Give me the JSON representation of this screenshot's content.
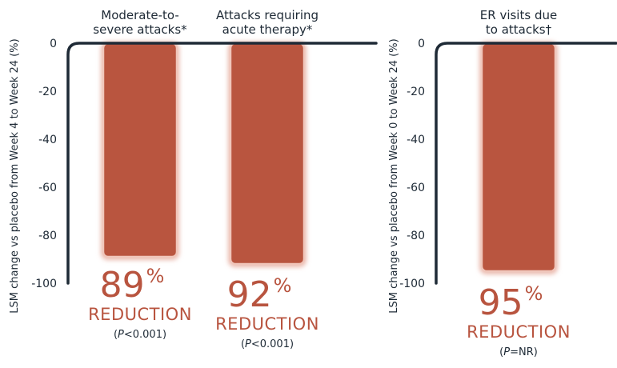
{
  "chart_data": [
    {
      "type": "bar",
      "ylabel": "LSM change vs placebo from Week 4 to Week 24 (%)",
      "ylim": [
        -100,
        0
      ],
      "yticks": [
        "0",
        "-20",
        "-40",
        "-60",
        "-80",
        "-100"
      ],
      "bars": [
        {
          "category_lines": [
            "Moderate-to-",
            "severe attacks*"
          ],
          "value": -89,
          "pct_number": "89",
          "pct_symbol": "%",
          "reduction_label": "REDUCTION",
          "p_label": "P",
          "p_text": "<0.001"
        },
        {
          "category_lines": [
            "Attacks requiring",
            "acute therapy*"
          ],
          "value": -92,
          "pct_number": "92",
          "pct_symbol": "%",
          "reduction_label": "REDUCTION",
          "p_label": "P",
          "p_text": "<0.001"
        }
      ]
    },
    {
      "type": "bar",
      "ylabel": "LSM change vs placebo from Week 0 to Week 24 (%)",
      "ylim": [
        -100,
        0
      ],
      "yticks": [
        "0",
        "-20",
        "-40",
        "-60",
        "-80",
        "-100"
      ],
      "bars": [
        {
          "category_lines": [
            "ER visits due",
            "to attacks†"
          ],
          "value": -95,
          "pct_number": "95",
          "pct_symbol": "%",
          "reduction_label": "REDUCTION",
          "p_label": "P",
          "p_text": "=NR"
        }
      ]
    }
  ],
  "colors": {
    "bar_fill": "#b9553f",
    "bar_glow": "#eab9ad",
    "axis": "#1e2a36",
    "accent_text": "#b8543f"
  }
}
